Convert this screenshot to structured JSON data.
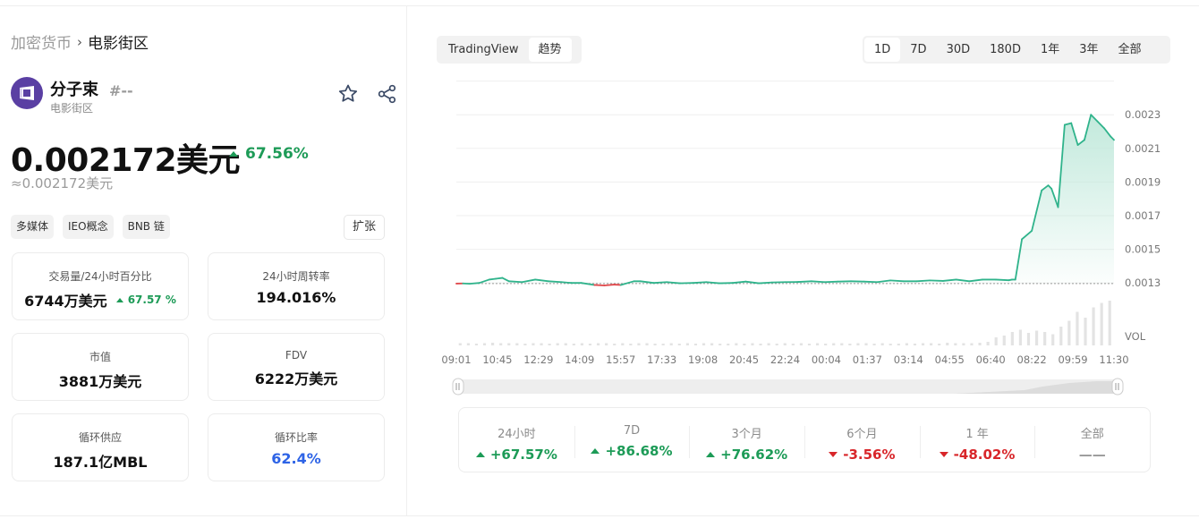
{
  "breadcrumb": {
    "root": "加密货币",
    "separator": "›",
    "current": "电影街区"
  },
  "coin": {
    "name": "分子束",
    "rank": "#--",
    "category": "电影街区"
  },
  "price": {
    "main": "0.002172美元",
    "change": "67.56%",
    "approx": "≈0.002172美元"
  },
  "tags": [
    "多媒体",
    "IEO概念",
    "BNB 链"
  ],
  "expand_label": "扩张",
  "stats": {
    "volume": {
      "label": "交易量/24小时百分比",
      "value": "6744万美元",
      "change": "67.57 %"
    },
    "turnover": {
      "label": "24小时周转率",
      "value": "194.016%"
    },
    "mcap": {
      "label": "市值",
      "value": "3881万美元"
    },
    "fdv": {
      "label": "FDV",
      "value": "6222万美元"
    },
    "supply": {
      "label": "循环供应",
      "value": "187.1亿MBL"
    },
    "ratio": {
      "label": "循环比率",
      "value": "62.4%"
    }
  },
  "view_toggle": [
    "TradingView",
    "趋势"
  ],
  "ranges": [
    "1D",
    "7D",
    "30D",
    "180D",
    "1年",
    "3年",
    "全部"
  ],
  "chart_data": {
    "type": "area",
    "title": "",
    "ylabel": "",
    "xlabel": "",
    "y_ticks": [
      "0.0023",
      "0.0021",
      "0.0019",
      "0.0017",
      "0.0015",
      "0.0013"
    ],
    "vol_label": "VOL",
    "x_ticks": [
      "09:01",
      "10:45",
      "12:29",
      "14:09",
      "15:57",
      "17:33",
      "19:08",
      "20:45",
      "22:24",
      "00:04",
      "01:37",
      "03:14",
      "04:55",
      "06:40",
      "08:22",
      "09:59",
      "11:30"
    ],
    "ylim": [
      0.0012,
      0.00245
    ],
    "baseline": 0.0012965,
    "grid": true,
    "colors": {
      "up": "#2fb38b",
      "down": "#e0484b",
      "fill": "#bfe8da"
    },
    "series": [
      {
        "x": [
          0,
          0.01,
          0.02,
          0.035,
          0.05,
          0.06,
          0.07,
          0.08,
          0.1,
          0.12,
          0.14,
          0.16,
          0.175,
          0.19,
          0.21,
          0.225,
          0.24,
          0.25,
          0.27,
          0.28,
          0.3,
          0.32,
          0.34,
          0.36,
          0.38,
          0.4,
          0.42,
          0.44,
          0.46,
          0.48,
          0.5,
          0.52,
          0.54,
          0.56,
          0.58,
          0.6,
          0.62,
          0.64,
          0.66,
          0.68,
          0.7,
          0.72,
          0.74,
          0.76,
          0.78,
          0.8,
          0.82,
          0.84,
          0.845,
          0.85,
          0.86,
          0.875,
          0.89,
          0.9,
          0.905,
          0.915,
          0.925,
          0.935,
          0.945,
          0.955,
          0.965,
          0.975,
          0.985,
          0.995,
          1.0
        ],
        "values": [
          0.001296,
          0.001297,
          0.001295,
          0.0013,
          0.00132,
          0.001325,
          0.00133,
          0.00131,
          0.001305,
          0.00132,
          0.00131,
          0.001305,
          0.0013,
          0.0013,
          0.001288,
          0.001285,
          0.00129,
          0.001288,
          0.00131,
          0.00131,
          0.0013,
          0.001305,
          0.001298,
          0.0013,
          0.001305,
          0.001298,
          0.0013,
          0.001308,
          0.001298,
          0.001303,
          0.001305,
          0.001306,
          0.00131,
          0.001305,
          0.001308,
          0.00131,
          0.001308,
          0.001305,
          0.001315,
          0.00131,
          0.00131,
          0.001315,
          0.001312,
          0.00132,
          0.00131,
          0.00132,
          0.00132,
          0.001316,
          0.00132,
          0.00132,
          0.00156,
          0.00161,
          0.00185,
          0.00188,
          0.00186,
          0.00175,
          0.00224,
          0.00225,
          0.00212,
          0.00215,
          0.0023,
          0.00226,
          0.00222,
          0.00217,
          0.00215
        ],
        "x_scale": "fraction of visible time range"
      }
    ],
    "volume": [
      0.05,
      0.05,
      0.04,
      0.05,
      0.06,
      0.05,
      0.05,
      0.05,
      0.04,
      0.05,
      0.05,
      0.04,
      0.05,
      0.05,
      0.04,
      0.05,
      0.04,
      0.05,
      0.05,
      0.04,
      0.05,
      0.04,
      0.05,
      0.05,
      0.04,
      0.04,
      0.05,
      0.04,
      0.05,
      0.04,
      0.05,
      0.05,
      0.04,
      0.04,
      0.05,
      0.04,
      0.05,
      0.04,
      0.05,
      0.04,
      0.05,
      0.04,
      0.05,
      0.04,
      0.05,
      0.04,
      0.05,
      0.05,
      0.04,
      0.05,
      0.05,
      0.04,
      0.05,
      0.04,
      0.04,
      0.05,
      0.04,
      0.05,
      0.05,
      0.04,
      0.06,
      0.05,
      0.05,
      0.05,
      0.06,
      0.08,
      0.18,
      0.22,
      0.3,
      0.35,
      0.28,
      0.33,
      0.3,
      0.25,
      0.42,
      0.55,
      0.75,
      0.62,
      0.85,
      0.95,
      1.0
    ]
  },
  "performance": [
    {
      "label": "24小时",
      "value": "+67.57%",
      "dir": "up"
    },
    {
      "label": "7D",
      "value": "+86.68%",
      "dir": "up"
    },
    {
      "label": "3个月",
      "value": "+76.62%",
      "dir": "up"
    },
    {
      "label": "6个月",
      "value": "-3.56%",
      "dir": "down"
    },
    {
      "label": "1 年",
      "value": "-48.02%",
      "dir": "down"
    },
    {
      "label": "全部",
      "value": "——",
      "dir": "none"
    }
  ]
}
